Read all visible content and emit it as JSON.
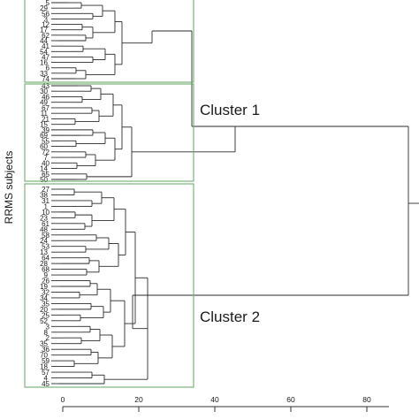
{
  "y_axis_label": "RRMS subjects",
  "clusters": [
    {
      "label": ""
    },
    {
      "label": "Cluster 1"
    },
    {
      "label": "Cluster 2"
    }
  ],
  "axis_ticks": [
    "0",
    "20",
    "40",
    "60",
    "80"
  ],
  "leaf_numbers": {
    "group1": [
      "5",
      "29",
      "56",
      "3",
      "12",
      "17",
      "62",
      "44",
      "41",
      "54",
      "47",
      "16",
      "6",
      "33",
      "74"
    ],
    "group2": [
      "43",
      "30",
      "46",
      "49",
      "67",
      "11",
      "21",
      "15",
      "39",
      "69",
      "55",
      "60",
      "72",
      "7",
      "40",
      "14",
      "65",
      "50"
    ],
    "group3": [
      "27",
      "38",
      "31",
      "1",
      "10",
      "23",
      "61",
      "48",
      "58",
      "24",
      "53",
      "13",
      "64",
      "28",
      "68",
      "9",
      "26",
      "19",
      "32",
      "34",
      "35",
      "20",
      "25",
      "52",
      "3",
      "8",
      "2",
      "35",
      "36",
      "70",
      "59",
      "18",
      "57",
      "4",
      "45"
    ]
  },
  "colors": {
    "box": "#6fae6f",
    "link": "#2b2b2b"
  }
}
